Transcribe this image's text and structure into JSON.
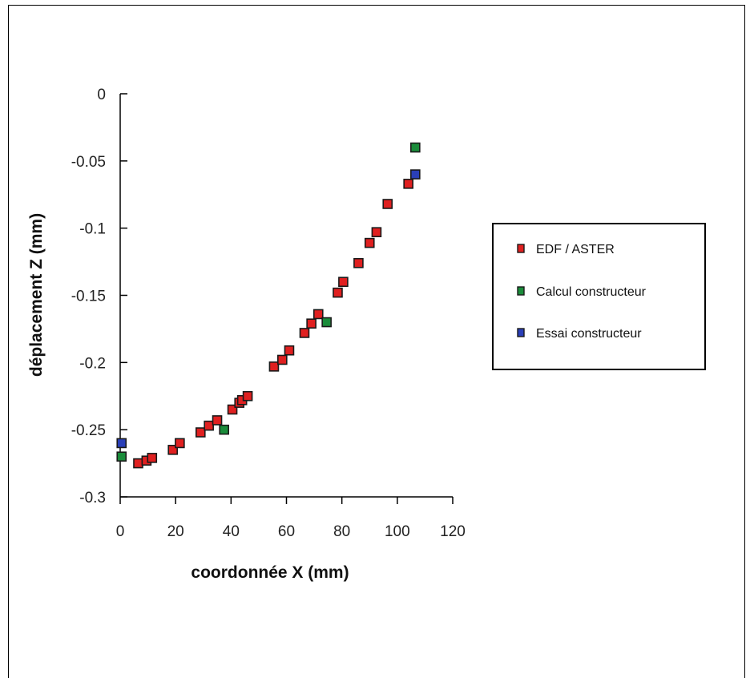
{
  "chart_data": {
    "type": "scatter",
    "title": "",
    "xlabel": "coordonnée X (mm)",
    "ylabel": "déplacement Z (mm)",
    "xlim": [
      0,
      120
    ],
    "ylim": [
      -0.3,
      0
    ],
    "x_ticks": [
      "0",
      "20",
      "40",
      "60",
      "80",
      "100",
      "120"
    ],
    "y_ticks": [
      "0",
      "-0.05",
      "-0.1",
      "-0.15",
      "-0.2",
      "-0.25",
      "-0.3"
    ],
    "grid": false,
    "legend_position": "right",
    "series": [
      {
        "name": "EDF / ASTER",
        "color": "#e02020",
        "points": [
          [
            6.5,
            -0.275
          ],
          [
            9.5,
            -0.273
          ],
          [
            11.5,
            -0.271
          ],
          [
            19,
            -0.265
          ],
          [
            21.5,
            -0.26
          ],
          [
            29,
            -0.252
          ],
          [
            32,
            -0.247
          ],
          [
            35,
            -0.243
          ],
          [
            40.5,
            -0.235
          ],
          [
            43,
            -0.23
          ],
          [
            44,
            -0.228
          ],
          [
            46,
            -0.225
          ],
          [
            55.5,
            -0.203
          ],
          [
            58.5,
            -0.198
          ],
          [
            61,
            -0.191
          ],
          [
            66.5,
            -0.178
          ],
          [
            69,
            -0.171
          ],
          [
            71.5,
            -0.164
          ],
          [
            78.5,
            -0.148
          ],
          [
            80.5,
            -0.14
          ],
          [
            86,
            -0.126
          ],
          [
            90,
            -0.111
          ],
          [
            92.5,
            -0.103
          ],
          [
            96.5,
            -0.082
          ],
          [
            104,
            -0.067
          ]
        ]
      },
      {
        "name": "Calcul constructeur",
        "color": "#1a8c3a",
        "points": [
          [
            0.5,
            -0.27
          ],
          [
            37.5,
            -0.25
          ],
          [
            74.5,
            -0.17
          ],
          [
            106.5,
            -0.04
          ]
        ]
      },
      {
        "name": "Essai constructeur",
        "color": "#2a3fb8",
        "points": [
          [
            0.5,
            -0.26
          ],
          [
            106.5,
            -0.06
          ]
        ]
      }
    ]
  }
}
